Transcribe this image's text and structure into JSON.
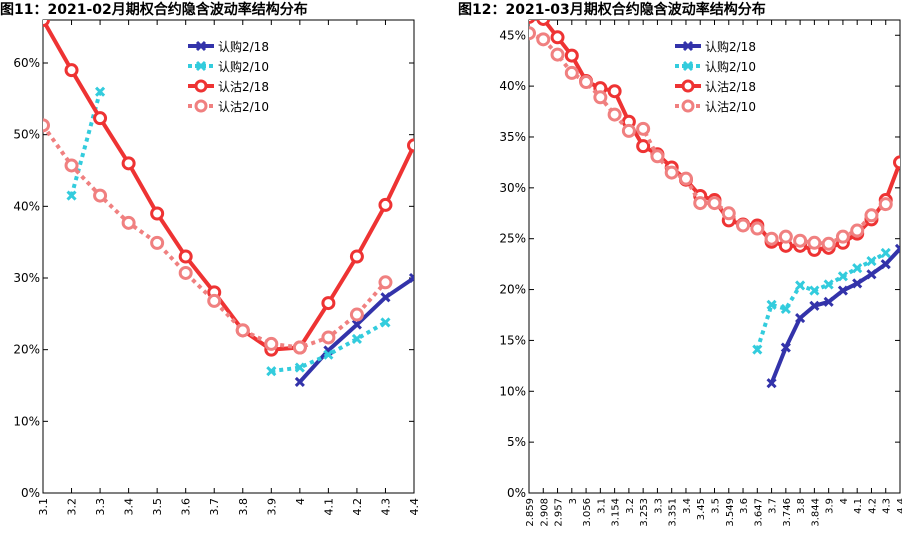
{
  "titles": [
    "图11：2021-02月期权合约隐含波动率结构分布",
    "图12：2021-03月期权合约隐含波动率结构分布"
  ],
  "chart_data": [
    {
      "type": "line",
      "title": "图11：2021-02月期权合约隐含波动率结构分布",
      "x": [
        "3.1",
        "3.2",
        "3.3",
        "3.4",
        "3.5",
        "3.6",
        "3.7",
        "3.8",
        "3.9",
        "4",
        "4.1",
        "4.2",
        "4.3",
        "4.4"
      ],
      "y_unit": "%",
      "ylim": [
        0,
        66
      ],
      "yticks": [
        "0%",
        "10%",
        "20%",
        "30%",
        "40%",
        "50%",
        "60%"
      ],
      "grid": false,
      "legend_position": "top-center",
      "series": [
        {
          "name": "认购2/18",
          "color": "#3333aa",
          "style": "solid",
          "marker": "x",
          "values": [
            null,
            null,
            null,
            null,
            null,
            null,
            null,
            null,
            null,
            15.5,
            19.9,
            23.5,
            27.3,
            30.0
          ]
        },
        {
          "name": "认购2/10",
          "color": "#33ccdd",
          "style": "dotted",
          "marker": "x",
          "values": [
            null,
            41.5,
            56.0,
            null,
            null,
            null,
            null,
            null,
            17.0,
            17.5,
            19.3,
            21.5,
            23.8,
            null
          ]
        },
        {
          "name": "认沽2/18",
          "color": "#ee3333",
          "style": "solid",
          "marker": "o",
          "values": [
            66,
            59.0,
            52.3,
            46.0,
            39.0,
            33.0,
            28.0,
            22.7,
            20.0,
            20.3,
            26.5,
            33.0,
            40.2,
            48.5
          ]
        },
        {
          "name": "认沽2/10",
          "color": "#f08080",
          "style": "dotted",
          "marker": "o",
          "values": [
            51.3,
            45.7,
            41.5,
            37.7,
            34.9,
            30.7,
            26.8,
            22.7,
            20.8,
            20.3,
            21.7,
            24.9,
            29.4,
            null
          ]
        }
      ]
    },
    {
      "type": "line",
      "title": "图12：2021-03月期权合约隐含波动率结构分布",
      "x": [
        "2.859",
        "2.908",
        "2.957",
        "3",
        "3.056",
        "3.1",
        "3.154",
        "3.2",
        "3.253",
        "3.3",
        "3.351",
        "3.4",
        "3.45",
        "3.5",
        "3.549",
        "3.6",
        "3.647",
        "3.7",
        "3.746",
        "3.8",
        "3.844",
        "3.9",
        "4",
        "4.1",
        "4.2",
        "4.3",
        "4.4"
      ],
      "y_unit": "%",
      "ylim": [
        0,
        46.5
      ],
      "yticks": [
        "0%",
        "5%",
        "10%",
        "15%",
        "20%",
        "25%",
        "30%",
        "35%",
        "40%",
        "45%"
      ],
      "grid": false,
      "legend_position": "top-center",
      "series": [
        {
          "name": "认购2/18",
          "color": "#3333aa",
          "style": "solid",
          "marker": "x",
          "values": [
            null,
            null,
            null,
            null,
            null,
            null,
            null,
            null,
            null,
            null,
            null,
            null,
            null,
            null,
            null,
            null,
            null,
            10.8,
            14.3,
            17.2,
            18.4,
            18.8,
            19.9,
            20.6,
            21.5,
            22.5,
            24.0
          ]
        },
        {
          "name": "认购2/10",
          "color": "#33ccdd",
          "style": "dotted",
          "marker": "x",
          "values": [
            null,
            null,
            null,
            null,
            null,
            null,
            null,
            null,
            null,
            null,
            null,
            null,
            null,
            null,
            null,
            null,
            14.1,
            18.5,
            18.1,
            20.4,
            19.9,
            20.5,
            21.3,
            22.1,
            22.8,
            23.6,
            null
          ]
        },
        {
          "name": "认沽2/18",
          "color": "#ee3333",
          "style": "solid",
          "marker": "o",
          "values": [
            46.8,
            46.6,
            44.8,
            43.0,
            40.5,
            39.8,
            39.5,
            36.5,
            34.1,
            33.3,
            32.0,
            30.8,
            29.2,
            28.8,
            26.8,
            26.4,
            26.3,
            24.7,
            24.3,
            24.3,
            23.9,
            24.1,
            24.6,
            25.5,
            26.9,
            28.8,
            32.5
          ]
        },
        {
          "name": "认沽2/10",
          "color": "#f08080",
          "style": "dotted",
          "marker": "o",
          "values": [
            45.2,
            44.6,
            43.1,
            41.3,
            40.4,
            38.9,
            37.2,
            35.6,
            35.8,
            33.1,
            31.5,
            30.9,
            28.5,
            28.5,
            27.5,
            26.3,
            26.0,
            25.0,
            25.2,
            24.8,
            24.6,
            24.5,
            25.2,
            25.8,
            27.3,
            28.4,
            null
          ]
        }
      ]
    }
  ]
}
